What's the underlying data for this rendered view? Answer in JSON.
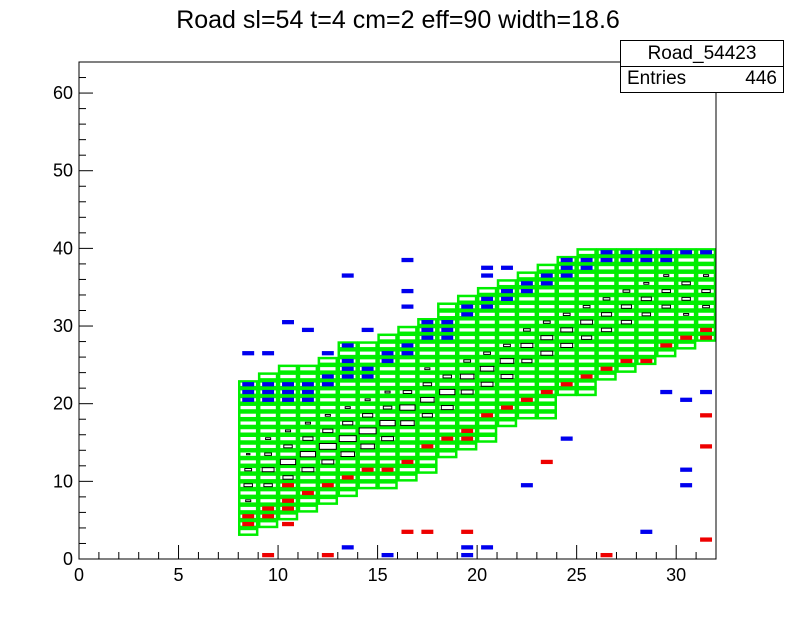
{
  "title": "Road sl=54 t=4 cm=2 eff=90 width=18.6",
  "stats": {
    "name": "Road_54423",
    "entries_label": "Entries",
    "entries_value": "446"
  },
  "colors": {
    "road_box": "#00ee00",
    "upper": "#0000ee",
    "lower": "#ee0000",
    "center": "#000000",
    "frame": "#000000"
  },
  "chart_data": {
    "type": "heatmap",
    "title": "Road sl=54 t=4 cm=2 eff=90 width=18.6",
    "xlabel": "",
    "ylabel": "",
    "xlim": [
      0,
      32
    ],
    "ylim": [
      0,
      64
    ],
    "x_ticks": [
      0,
      5,
      10,
      15,
      20,
      25,
      30
    ],
    "y_ticks": [
      0,
      10,
      20,
      30,
      40,
      50,
      60
    ],
    "road_columns": [
      {
        "x": 8,
        "ymin": 3,
        "ymax": 23
      },
      {
        "x": 9,
        "ymin": 4,
        "ymax": 24
      },
      {
        "x": 10,
        "ymin": 5,
        "ymax": 25
      },
      {
        "x": 11,
        "ymin": 6,
        "ymax": 25
      },
      {
        "x": 12,
        "ymin": 7,
        "ymax": 26
      },
      {
        "x": 13,
        "ymin": 8,
        "ymax": 28
      },
      {
        "x": 14,
        "ymin": 9,
        "ymax": 28
      },
      {
        "x": 15,
        "ymin": 9,
        "ymax": 29
      },
      {
        "x": 16,
        "ymin": 10,
        "ymax": 30
      },
      {
        "x": 17,
        "ymin": 11,
        "ymax": 31
      },
      {
        "x": 18,
        "ymin": 13,
        "ymax": 33
      },
      {
        "x": 19,
        "ymin": 14,
        "ymax": 34
      },
      {
        "x": 20,
        "ymin": 15,
        "ymax": 35
      },
      {
        "x": 21,
        "ymin": 17,
        "ymax": 36
      },
      {
        "x": 22,
        "ymin": 18,
        "ymax": 37
      },
      {
        "x": 23,
        "ymin": 18,
        "ymax": 38
      },
      {
        "x": 24,
        "ymin": 21,
        "ymax": 39
      },
      {
        "x": 25,
        "ymin": 21,
        "ymax": 40
      },
      {
        "x": 26,
        "ymin": 23,
        "ymax": 40
      },
      {
        "x": 27,
        "ymin": 24,
        "ymax": 40
      },
      {
        "x": 28,
        "ymin": 25,
        "ymax": 40
      },
      {
        "x": 29,
        "ymin": 26,
        "ymax": 40
      },
      {
        "x": 30,
        "ymin": 27,
        "ymax": 40
      },
      {
        "x": 31,
        "ymin": 28,
        "ymax": 40
      }
    ],
    "series": [
      {
        "color": "#0000ee",
        "points": [
          [
            8.5,
            22.5
          ],
          [
            8.5,
            21.5
          ],
          [
            8.5,
            20.5
          ],
          [
            9.5,
            22.5
          ],
          [
            9.5,
            21.5
          ],
          [
            9.5,
            20.5
          ],
          [
            10.5,
            22.5
          ],
          [
            10.5,
            21.5
          ],
          [
            10.5,
            20.5
          ],
          [
            11.5,
            22.5
          ],
          [
            11.5,
            21.5
          ],
          [
            11.5,
            20.5
          ],
          [
            12.5,
            23.5
          ],
          [
            12.5,
            22.5
          ],
          [
            13.5,
            25.5
          ],
          [
            13.5,
            24.5
          ],
          [
            13.5,
            23.5
          ],
          [
            14.5,
            24.5
          ],
          [
            14.5,
            23.5
          ],
          [
            15.5,
            26.5
          ],
          [
            15.5,
            25.5
          ],
          [
            16.5,
            27.5
          ],
          [
            16.5,
            26.5
          ],
          [
            17.5,
            30.5
          ],
          [
            17.5,
            29.5
          ],
          [
            17.5,
            28.5
          ],
          [
            18.5,
            30.5
          ],
          [
            18.5,
            29.5
          ],
          [
            18.5,
            28.5
          ],
          [
            19.5,
            32.5
          ],
          [
            19.5,
            31.5
          ],
          [
            20.5,
            33.5
          ],
          [
            20.5,
            32.5
          ],
          [
            21.5,
            34.5
          ],
          [
            21.5,
            33.5
          ],
          [
            22.5,
            35.5
          ],
          [
            22.5,
            34.5
          ],
          [
            23.5,
            36.5
          ],
          [
            23.5,
            35.5
          ],
          [
            24.5,
            38.5
          ],
          [
            24.5,
            37.5
          ],
          [
            24.5,
            36.5
          ],
          [
            25.5,
            38.5
          ],
          [
            25.5,
            37.5
          ],
          [
            26.5,
            39.5
          ],
          [
            26.5,
            38.5
          ],
          [
            27.5,
            39.5
          ],
          [
            27.5,
            38.5
          ],
          [
            28.5,
            39.5
          ],
          [
            28.5,
            38.5
          ],
          [
            29.5,
            39.5
          ],
          [
            29.5,
            38.5
          ],
          [
            30.5,
            39.5
          ],
          [
            31.5,
            39.5
          ],
          [
            8.5,
            26.5
          ],
          [
            9.5,
            26.5
          ],
          [
            10.5,
            30.5
          ],
          [
            11.5,
            29.5
          ],
          [
            12.5,
            26.5
          ],
          [
            13.5,
            27.5
          ],
          [
            13.5,
            36.5
          ],
          [
            14.5,
            29.5
          ],
          [
            16.5,
            38.5
          ],
          [
            16.5,
            34.5
          ],
          [
            16.5,
            32.5
          ],
          [
            20.5,
            36.5
          ],
          [
            20.5,
            37.5
          ],
          [
            21.5,
            37.5
          ],
          [
            28.5,
            3.5
          ],
          [
            29.5,
            21.5
          ],
          [
            30.5,
            20.5
          ],
          [
            31.5,
            21.5
          ],
          [
            30.5,
            9.5
          ],
          [
            30.5,
            11.5
          ],
          [
            22.5,
            9.5
          ],
          [
            24.5,
            15.5
          ],
          [
            15.5,
            0.5
          ],
          [
            19.5,
            1.5
          ],
          [
            19.5,
            0.5
          ],
          [
            20.5,
            1.5
          ],
          [
            13.5,
            1.5
          ]
        ]
      },
      {
        "color": "#ee0000",
        "points": [
          [
            8.5,
            4.5
          ],
          [
            8.5,
            5.5
          ],
          [
            9.5,
            6.5
          ],
          [
            9.5,
            5.5
          ],
          [
            10.5,
            7.5
          ],
          [
            10.5,
            6.5
          ],
          [
            11.5,
            8.5
          ],
          [
            12.5,
            9.5
          ],
          [
            13.5,
            10.5
          ],
          [
            14.5,
            11.5
          ],
          [
            15.5,
            11.5
          ],
          [
            16.5,
            12.5
          ],
          [
            17.5,
            14.5
          ],
          [
            18.5,
            15.5
          ],
          [
            19.5,
            16.5
          ],
          [
            19.5,
            15.5
          ],
          [
            20.5,
            18.5
          ],
          [
            21.5,
            19.5
          ],
          [
            22.5,
            20.5
          ],
          [
            23.5,
            21.5
          ],
          [
            24.5,
            22.5
          ],
          [
            25.5,
            23.5
          ],
          [
            26.5,
            24.5
          ],
          [
            27.5,
            25.5
          ],
          [
            28.5,
            25.5
          ],
          [
            29.5,
            27.5
          ],
          [
            30.5,
            28.5
          ],
          [
            31.5,
            29.5
          ],
          [
            31.5,
            28.5
          ],
          [
            9.5,
            0.5
          ],
          [
            12.5,
            0.5
          ],
          [
            16.5,
            3.5
          ],
          [
            17.5,
            3.5
          ],
          [
            19.5,
            3.5
          ],
          [
            26.5,
            0.5
          ],
          [
            31.5,
            2.5
          ],
          [
            31.5,
            14.5
          ],
          [
            31.5,
            18.5
          ],
          [
            23.5,
            12.5
          ],
          [
            10.5,
            4.5
          ],
          [
            10.5,
            9.5
          ]
        ]
      },
      {
        "color": "#000000",
        "points": [
          [
            8.5,
            7.5,
            0.3
          ],
          [
            8.5,
            9.5,
            0.5
          ],
          [
            8.5,
            11.5,
            0.4
          ],
          [
            8.5,
            13.5,
            0.2
          ],
          [
            9.5,
            9.5,
            0.5
          ],
          [
            9.5,
            11.5,
            0.7
          ],
          [
            9.5,
            13.5,
            0.4
          ],
          [
            9.5,
            15.5,
            0.3
          ],
          [
            10.5,
            10.5,
            0.6
          ],
          [
            10.5,
            12.5,
            0.9
          ],
          [
            10.5,
            14.5,
            0.5
          ],
          [
            10.5,
            16.5,
            0.3
          ],
          [
            11.5,
            11.5,
            0.7
          ],
          [
            11.5,
            13.5,
            0.9
          ],
          [
            11.5,
            15.5,
            0.6
          ],
          [
            11.5,
            17.5,
            0.3
          ],
          [
            12.5,
            12.5,
            0.7
          ],
          [
            12.5,
            14.5,
            1.0
          ],
          [
            12.5,
            16.5,
            0.6
          ],
          [
            12.5,
            18.5,
            0.3
          ],
          [
            13.5,
            13.5,
            0.8
          ],
          [
            13.5,
            15.5,
            1.0
          ],
          [
            13.5,
            17.5,
            0.6
          ],
          [
            13.5,
            19.5,
            0.3
          ],
          [
            14.5,
            14.5,
            0.8
          ],
          [
            14.5,
            16.5,
            1.0
          ],
          [
            14.5,
            18.5,
            0.6
          ],
          [
            14.5,
            20.5,
            0.3
          ],
          [
            15.5,
            15.5,
            0.7
          ],
          [
            15.5,
            17.5,
            0.9
          ],
          [
            15.5,
            19.5,
            0.5
          ],
          [
            15.5,
            21.5,
            0.3
          ],
          [
            16.5,
            17.5,
            0.8
          ],
          [
            16.5,
            19.5,
            0.9
          ],
          [
            16.5,
            21.5,
            0.5
          ],
          [
            17.5,
            18.5,
            0.6
          ],
          [
            17.5,
            20.5,
            0.8
          ],
          [
            17.5,
            22.5,
            0.5
          ],
          [
            17.5,
            24.5,
            0.3
          ],
          [
            18.5,
            19.5,
            0.7
          ],
          [
            18.5,
            21.5,
            0.9
          ],
          [
            18.5,
            23.5,
            0.5
          ],
          [
            19.5,
            21.5,
            0.7
          ],
          [
            19.5,
            23.5,
            0.8
          ],
          [
            19.5,
            25.5,
            0.4
          ],
          [
            20.5,
            22.5,
            0.7
          ],
          [
            20.5,
            24.5,
            0.8
          ],
          [
            20.5,
            26.5,
            0.4
          ],
          [
            21.5,
            23.5,
            0.7
          ],
          [
            21.5,
            25.5,
            0.8
          ],
          [
            21.5,
            27.5,
            0.4
          ],
          [
            22.5,
            25.5,
            0.6
          ],
          [
            22.5,
            27.5,
            0.7
          ],
          [
            22.5,
            29.5,
            0.4
          ],
          [
            23.5,
            26.5,
            0.7
          ],
          [
            23.5,
            28.5,
            0.7
          ],
          [
            23.5,
            30.5,
            0.4
          ],
          [
            24.5,
            27.5,
            0.7
          ],
          [
            24.5,
            29.5,
            0.7
          ],
          [
            24.5,
            31.5,
            0.4
          ],
          [
            25.5,
            28.5,
            0.6
          ],
          [
            25.5,
            30.5,
            0.7
          ],
          [
            25.5,
            32.5,
            0.4
          ],
          [
            26.5,
            29.5,
            0.6
          ],
          [
            26.5,
            31.5,
            0.6
          ],
          [
            26.5,
            33.5,
            0.4
          ],
          [
            27.5,
            30.5,
            0.6
          ],
          [
            27.5,
            32.5,
            0.6
          ],
          [
            27.5,
            34.5,
            0.4
          ],
          [
            28.5,
            31.5,
            0.5
          ],
          [
            28.5,
            33.5,
            0.6
          ],
          [
            28.5,
            35.5,
            0.3
          ],
          [
            29.5,
            32.5,
            0.5
          ],
          [
            29.5,
            34.5,
            0.5
          ],
          [
            29.5,
            36.5,
            0.3
          ],
          [
            30.5,
            33.5,
            0.5
          ],
          [
            30.5,
            35.5,
            0.5
          ],
          [
            30.5,
            31.5,
            0.3
          ],
          [
            31.5,
            34.5,
            0.5
          ],
          [
            31.5,
            32.5,
            0.4
          ],
          [
            31.5,
            36.5,
            0.3
          ]
        ]
      }
    ]
  }
}
